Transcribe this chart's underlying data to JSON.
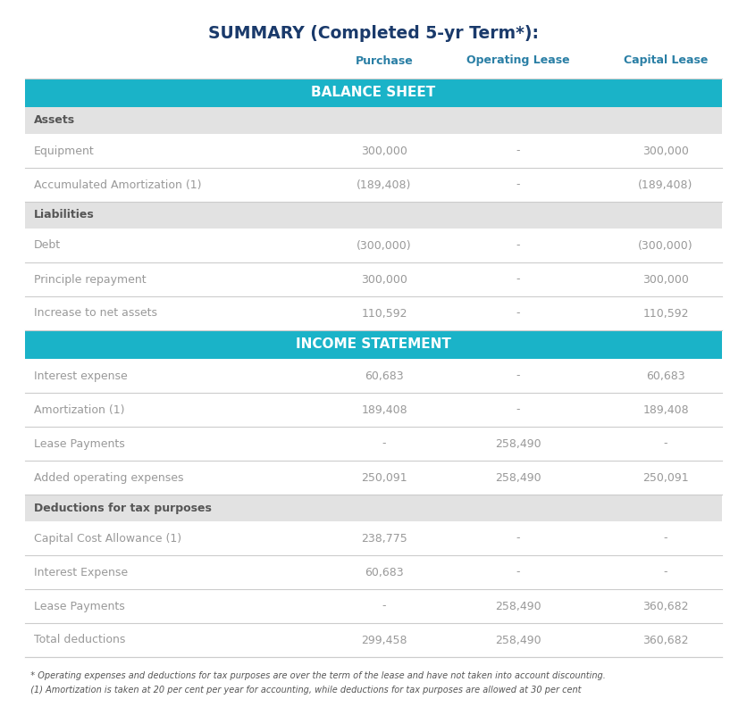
{
  "title": "SUMMARY (Completed 5-yr Term*):",
  "title_color": "#1a3a6b",
  "col_headers": [
    "Purchase",
    "Operating Lease",
    "Capital Lease"
  ],
  "col_header_color": "#2a7fa5",
  "teal_color": "#1ab3c8",
  "subgroup_color": "#e2e2e2",
  "subgroup_text_color": "#555555",
  "bg_color": "#ffffff",
  "row_line_color": "#cccccc",
  "data_text_color": "#999999",
  "label_text_color": "#999999",
  "footnote1": "  * Operating expenses and deductions for tax purposes are over the term of the lease and have not taken into account discounting.",
  "footnote2": "  (1) Amortization is taken at 20 per cent per year for accounting, while deductions for tax purposes are allowed at 30 per cent",
  "rows": [
    {
      "type": "section",
      "label": "BALANCE SHEET",
      "vals": [
        "",
        "",
        ""
      ]
    },
    {
      "type": "subgroup",
      "label": "Assets",
      "vals": [
        "",
        "",
        ""
      ]
    },
    {
      "type": "data",
      "label": "Equipment",
      "vals": [
        "300,000",
        "-",
        "300,000"
      ]
    },
    {
      "type": "data",
      "label": "Accumulated Amortization (1)",
      "vals": [
        "(189,408)",
        "-",
        "(189,408)"
      ]
    },
    {
      "type": "subgroup",
      "label": "Liabilities",
      "vals": [
        "",
        "",
        ""
      ]
    },
    {
      "type": "data",
      "label": "Debt",
      "vals": [
        "(300,000)",
        "-",
        "(300,000)"
      ]
    },
    {
      "type": "data",
      "label": "Principle repayment",
      "vals": [
        "300,000",
        "-",
        "300,000"
      ]
    },
    {
      "type": "data",
      "label": "Increase to net assets",
      "vals": [
        "110,592",
        "-",
        "110,592"
      ]
    },
    {
      "type": "section",
      "label": "INCOME STATEMENT",
      "vals": [
        "",
        "",
        ""
      ]
    },
    {
      "type": "data",
      "label": "Interest expense",
      "vals": [
        "60,683",
        "-",
        "60,683"
      ]
    },
    {
      "type": "data",
      "label": "Amortization (1)",
      "vals": [
        "189,408",
        "-",
        "189,408"
      ]
    },
    {
      "type": "data",
      "label": "Lease Payments",
      "vals": [
        "-",
        "258,490",
        "-"
      ]
    },
    {
      "type": "data",
      "label": "Added operating expenses",
      "vals": [
        "250,091",
        "258,490",
        "250,091"
      ]
    },
    {
      "type": "subgroup",
      "label": "Deductions for tax purposes",
      "vals": [
        "",
        "",
        ""
      ]
    },
    {
      "type": "data",
      "label": "Capital Cost Allowance (1)",
      "vals": [
        "238,775",
        "-",
        "-"
      ]
    },
    {
      "type": "data",
      "label": "Interest Expense",
      "vals": [
        "60,683",
        "-",
        "-"
      ]
    },
    {
      "type": "data",
      "label": "Lease Payments",
      "vals": [
        "-",
        "258,490",
        "360,682"
      ]
    },
    {
      "type": "data",
      "label": "Total deductions",
      "vals": [
        "299,458",
        "258,490",
        "360,682"
      ]
    }
  ]
}
